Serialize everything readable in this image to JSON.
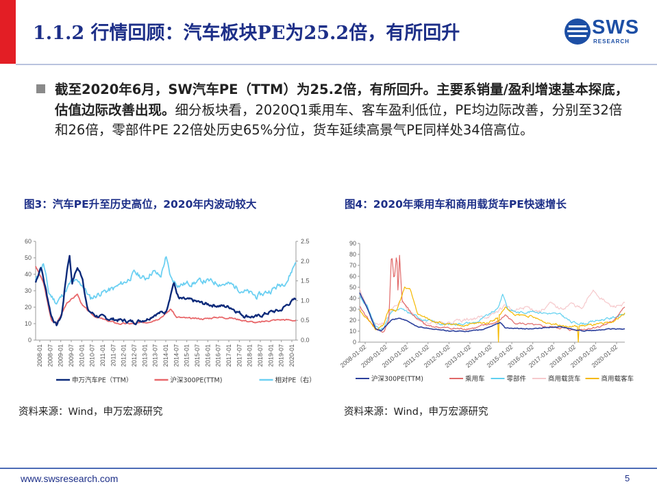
{
  "page": {
    "title": "1.1.2 行情回顾：汽车板块PE为25.2倍，有所回升",
    "logo_text": "SWS",
    "logo_subtext": "RESEARCH",
    "footer_url": "www.swsresearch.com",
    "page_number": "5",
    "colors": {
      "title": "#1d2f88",
      "accent": "#e31e25",
      "logo": "#1d4fa5"
    }
  },
  "bullet": {
    "icon": "square-bullet-icon",
    "strong_text": "截至2020年6月，SW汽车PE（TTM）为25.2倍，有所回升。主要系销量/盈利增速基本探底，估值边际改善出现。",
    "normal_text": "细分板块看，2020Q1乘用车、客车盈利低位，PE均边际改善，分别至32倍和26倍，零部件PE 22倍处历史65%分位，货车延续高景气PE同样处34倍高位。"
  },
  "figure3": {
    "title": "图3：汽车PE升至历史高位，2020年内波动较大",
    "source": "资料来源：Wind，申万宏源研究"
  },
  "figure4": {
    "title": "图4：2020年乘用车和商用载货车PE快速增长",
    "source": "资料来源：Wind，申万宏源研究"
  },
  "chart_data": [
    {
      "type": "line",
      "title": "图3：汽车PE升至历史高位，2020年内波动较大",
      "x_tick_labels": [
        "2008-01",
        "2008-07",
        "2009-01",
        "2009-07",
        "2010-01",
        "2010-07",
        "2011-01",
        "2011-07",
        "2012-01",
        "2012-07",
        "2013-01",
        "2013-07",
        "2014-01",
        "2014-07",
        "2015-01",
        "2015-07",
        "2016-01",
        "2016-07",
        "2017-01",
        "2017-07",
        "2018-01",
        "2018-07",
        "2019-01",
        "2019-07",
        "2020-01"
      ],
      "y_left": {
        "ylim": [
          0,
          60
        ],
        "ticks": [
          "0",
          "10",
          "20",
          "30",
          "40",
          "50",
          "60"
        ]
      },
      "y_right": {
        "ylim": [
          0,
          2.5
        ],
        "ticks": [
          "0.0",
          "0.5",
          "1.0",
          "1.5",
          "2.0",
          "2.5"
        ]
      },
      "series": [
        {
          "name": "申万汽车PE（TTM）",
          "axis": "left",
          "color": "#0b2a7a"
        },
        {
          "name": "沪深300PE(TTM)",
          "axis": "left",
          "color": "#e8676a"
        },
        {
          "name": "相对PE（右）",
          "axis": "right",
          "color": "#6cd0f2"
        }
      ],
      "grid": false,
      "legend_position": "bottom"
    },
    {
      "type": "line",
      "title": "图4：2020年乘用车和商用载货车PE快速增长",
      "x_tick_labels": [
        "2008-01-02",
        "2009-01-02",
        "2010-01-02",
        "2011-01-02",
        "2012-01-02",
        "2013-01-02",
        "2014-01-02",
        "2015-01-02",
        "2016-01-02",
        "2017-01-02",
        "2018-01-02",
        "2019-01-02",
        "2020-01-02"
      ],
      "y": {
        "ylim": [
          0,
          90
        ],
        "ticks": [
          "0",
          "10",
          "20",
          "30",
          "40",
          "50",
          "60",
          "70",
          "80",
          "90"
        ]
      },
      "series": [
        {
          "name": "沪深300PE(TTM)",
          "color": "#2b3f9c"
        },
        {
          "name": "乘用车",
          "color": "#e06868"
        },
        {
          "name": "零部件",
          "color": "#5fd0f0"
        },
        {
          "name": "商用载货车",
          "color": "#f6c9cc"
        },
        {
          "name": "商用载客车",
          "color": "#f5b800"
        }
      ],
      "grid": false,
      "legend_position": "bottom"
    }
  ]
}
